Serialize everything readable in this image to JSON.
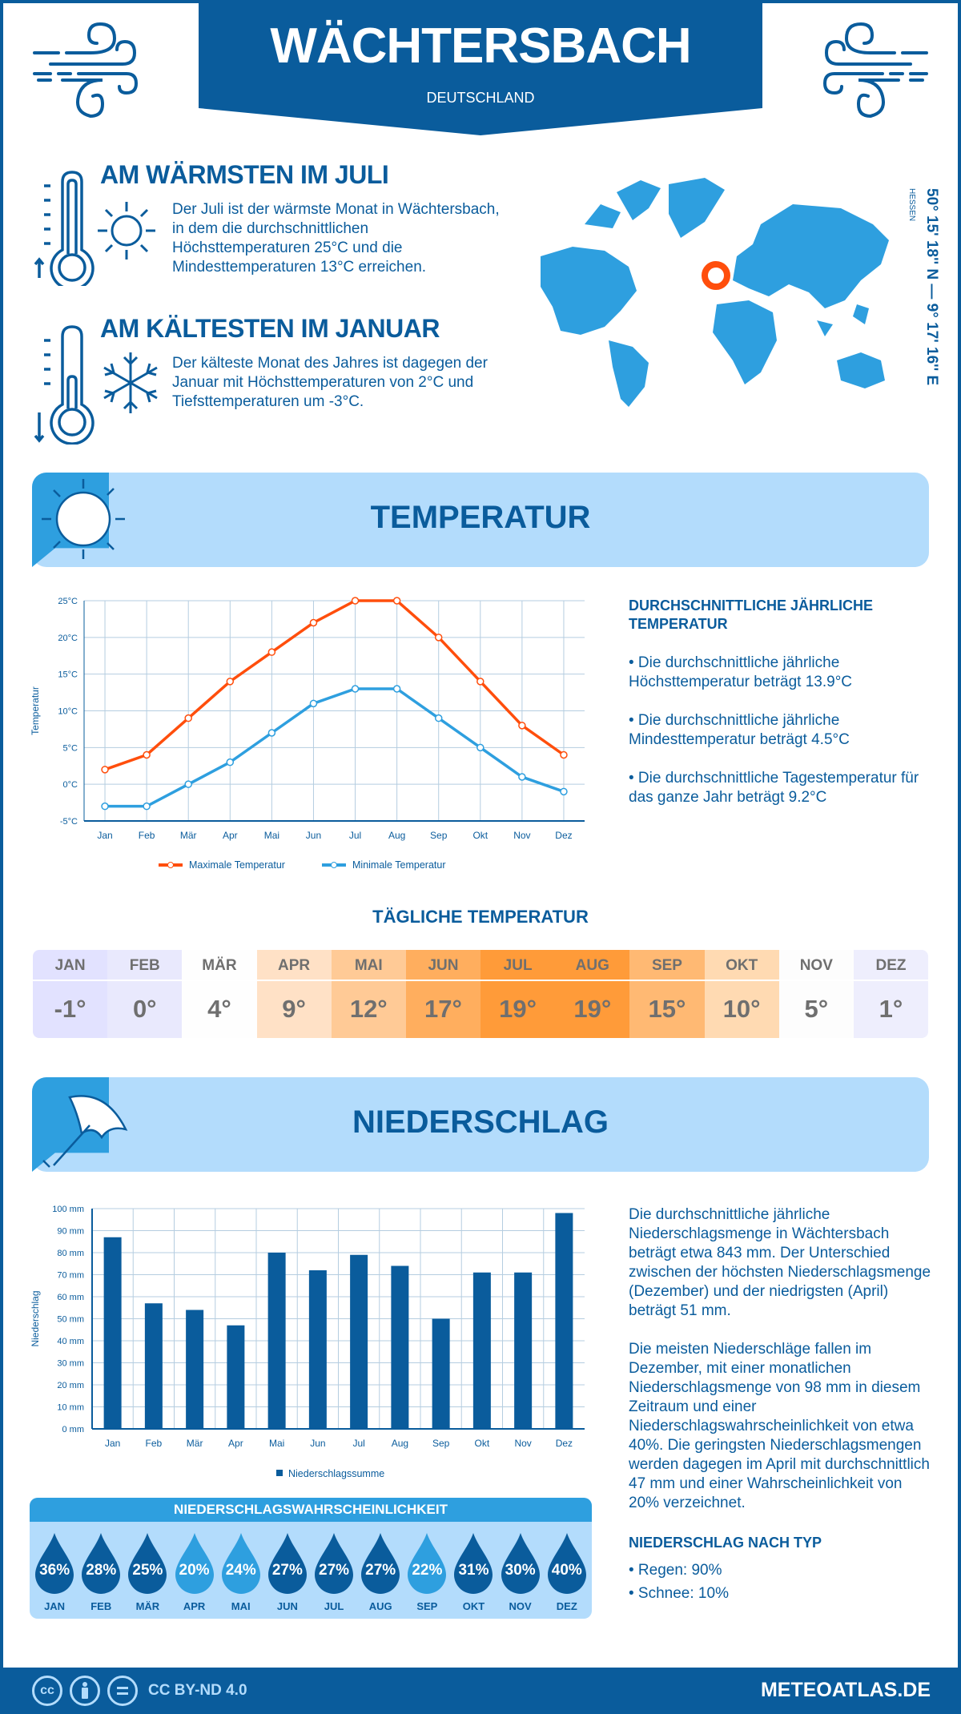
{
  "header": {
    "title": "WÄCHTERSBACH",
    "country": "DEUTSCHLAND"
  },
  "warm": {
    "heading": "AM WÄRMSTEN IM JULI",
    "text": "Der Juli ist der wärmste Monat in Wächtersbach, in dem die durchschnittlichen Höchsttemperaturen 25°C und die Mindesttemperaturen 13°C erreichen."
  },
  "cold": {
    "heading": "AM KÄLTESTEN IM JANUAR",
    "text": "Der kälteste Monat des Jahres ist dagegen der Januar mit Höchsttemperaturen von 2°C und Tiefsttemperaturen um -3°C."
  },
  "location": {
    "coords": "50° 15' 18'' N — 9° 17' 16'' E",
    "region": "HESSEN"
  },
  "colors": {
    "primary": "#0a5c9c",
    "light": "#b3dcfc",
    "accent": "#2e9fdf",
    "max": "#ff4e0c",
    "min": "#2e9fdf"
  },
  "temperature_section": {
    "title": "TEMPERATUR",
    "annual_heading": "DURCHSCHNITTLICHE JÄHRLICHE TEMPERATUR",
    "bullets": [
      "• Die durchschnittliche jährliche Höchsttemperatur beträgt 13.9°C",
      "• Die durchschnittliche jährliche Mindesttemperatur beträgt 4.5°C",
      "• Die durchschnittliche Tagestemperatur für das ganze Jahr beträgt 9.2°C"
    ]
  },
  "daily": {
    "title": "TÄGLICHE TEMPERATUR",
    "months": [
      "JAN",
      "FEB",
      "MÄR",
      "APR",
      "MAI",
      "JUN",
      "JUL",
      "AUG",
      "SEP",
      "OKT",
      "NOV",
      "DEZ"
    ],
    "values": [
      "-1°",
      "0°",
      "4°",
      "9°",
      "12°",
      "17°",
      "19°",
      "19°",
      "15°",
      "10°",
      "5°",
      "1°"
    ],
    "colors": [
      "#e2e2ff",
      "#e9e9fd",
      "#fefefe",
      "#ffe1c6",
      "#ffca96",
      "#ffae5e",
      "#ff9b39",
      "#ff9b39",
      "#ffb973",
      "#ffdab2",
      "#fdfdfd",
      "#eeeefd"
    ]
  },
  "precip_section": {
    "title": "NIEDERSCHLAG",
    "text1": "Die durchschnittliche jährliche Niederschlagsmenge in Wächtersbach beträgt etwa 843 mm. Der Unterschied zwischen der höchsten Niederschlagsmenge (Dezember) und der niedrigsten (April) beträgt 51 mm.",
    "text2": "Die meisten Niederschläge fallen im Dezember, mit einer monatlichen Niederschlagsmenge von 98 mm in diesem Zeitraum und einer Niederschlagswahrscheinlichkeit von etwa 40%. Die geringsten Niederschlagsmengen werden dagegen im April mit durchschnittlich 47 mm und einer Wahrscheinlichkeit von 20% verzeichnet.",
    "type_heading": "NIEDERSCHLAG NACH TYP",
    "types": [
      "• Regen: 90%",
      "• Schnee: 10%"
    ]
  },
  "probability": {
    "title": "NIEDERSCHLAGSWAHRSCHEINLICHKEIT",
    "months": [
      "JAN",
      "FEB",
      "MÄR",
      "APR",
      "MAI",
      "JUN",
      "JUL",
      "AUG",
      "SEP",
      "OKT",
      "NOV",
      "DEZ"
    ],
    "values": [
      "36%",
      "28%",
      "25%",
      "20%",
      "24%",
      "27%",
      "27%",
      "27%",
      "22%",
      "31%",
      "30%",
      "40%"
    ],
    "colors": [
      "#0a5c9c",
      "#0a5c9c",
      "#0a5c9c",
      "#2e9fdf",
      "#2e9fdf",
      "#0a5c9c",
      "#0a5c9c",
      "#0a5c9c",
      "#2e9fdf",
      "#0a5c9c",
      "#0a5c9c",
      "#0a5c9c"
    ]
  },
  "footer": {
    "license": "CC BY-ND 4.0",
    "site": "METEOATLAS.DE",
    "cc": "cc"
  },
  "chart_data": [
    {
      "type": "line",
      "ylabel": "Temperatur",
      "ylim": [
        -5,
        25
      ],
      "yticks": [
        "-5°C",
        "0°C",
        "5°C",
        "10°C",
        "15°C",
        "20°C",
        "25°C"
      ],
      "grid": true,
      "legend": "bottom",
      "categories": [
        "Jan",
        "Feb",
        "Mär",
        "Apr",
        "Mai",
        "Jun",
        "Jul",
        "Aug",
        "Sep",
        "Okt",
        "Nov",
        "Dez"
      ],
      "series": [
        {
          "name": "Maximale Temperatur",
          "color": "#ff4e0c",
          "values": [
            2,
            4,
            9,
            14,
            18,
            22,
            25,
            25,
            20,
            14,
            8,
            4
          ]
        },
        {
          "name": "Minimale Temperatur",
          "color": "#2e9fdf",
          "values": [
            -3,
            -3,
            0,
            3,
            7,
            11,
            13,
            13,
            9,
            5,
            1,
            -1
          ]
        }
      ]
    },
    {
      "type": "bar",
      "ylabel": "Niederschlag",
      "ylim": [
        0,
        100
      ],
      "yticks": [
        "0 mm",
        "10 mm",
        "20 mm",
        "30 mm",
        "40 mm",
        "50 mm",
        "60 mm",
        "70 mm",
        "80 mm",
        "90 mm",
        "100 mm"
      ],
      "grid": true,
      "legend": "bottom",
      "categories": [
        "Jan",
        "Feb",
        "Mär",
        "Apr",
        "Mai",
        "Jun",
        "Jul",
        "Aug",
        "Sep",
        "Okt",
        "Nov",
        "Dez"
      ],
      "series": [
        {
          "name": "Niederschlagssumme",
          "color": "#0a5c9c",
          "values": [
            87,
            57,
            54,
            47,
            80,
            72,
            79,
            74,
            50,
            71,
            71,
            98
          ]
        }
      ]
    }
  ]
}
